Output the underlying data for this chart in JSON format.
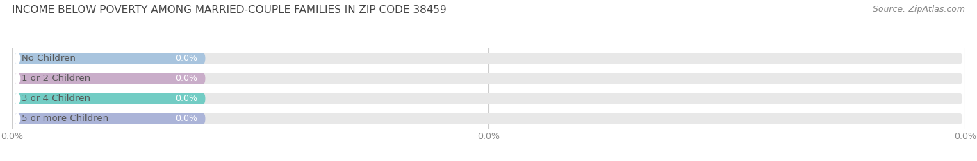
{
  "title": "INCOME BELOW POVERTY AMONG MARRIED-COUPLE FAMILIES IN ZIP CODE 38459",
  "source": "Source: ZipAtlas.com",
  "categories": [
    "No Children",
    "1 or 2 Children",
    "3 or 4 Children",
    "5 or more Children"
  ],
  "values": [
    0.0,
    0.0,
    0.0,
    0.0
  ],
  "bar_colors": [
    "#a8c4de",
    "#c9adc9",
    "#72ccc4",
    "#abb4d8"
  ],
  "background_color": "#ffffff",
  "bar_bg_color": "#e8e8e8",
  "title_fontsize": 11,
  "label_fontsize": 9.5,
  "value_fontsize": 9,
  "source_fontsize": 9,
  "xlim": [
    0,
    100
  ],
  "xtick_values": [
    0,
    50,
    100
  ],
  "xtick_labels": [
    "0.0%",
    "0.0%",
    "0.0%"
  ]
}
